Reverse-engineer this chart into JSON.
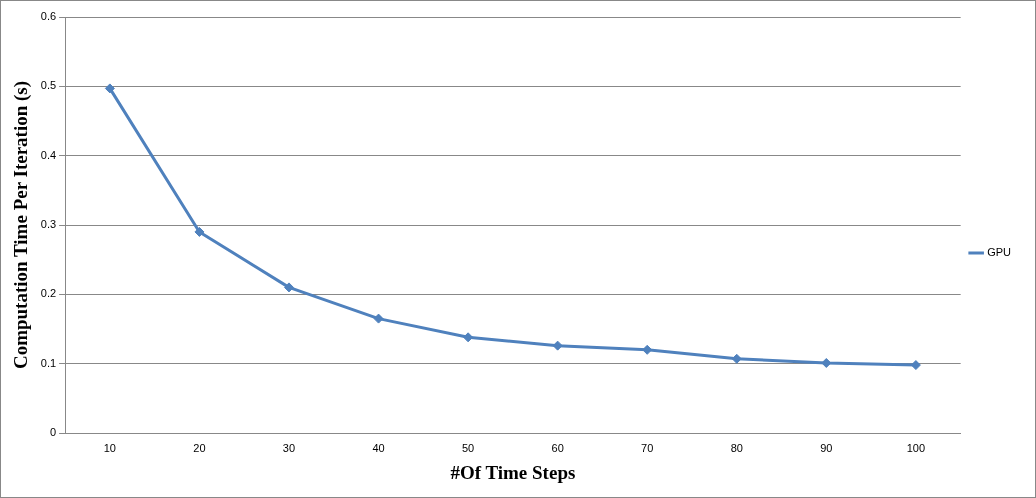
{
  "chart_data": {
    "type": "line",
    "xlabel": "#Of Time Steps",
    "ylabel": "Computation Time Per Iteration (s)",
    "categories": [
      "10",
      "20",
      "30",
      "40",
      "50",
      "60",
      "70",
      "80",
      "90",
      "100"
    ],
    "series": [
      {
        "name": "GPU",
        "color": "#4f81bd",
        "values": [
          0.497,
          0.29,
          0.21,
          0.165,
          0.138,
          0.126,
          0.12,
          0.107,
          0.101,
          0.098
        ]
      }
    ],
    "ylim": [
      0,
      0.6
    ],
    "yticks": [
      0,
      0.1,
      0.2,
      0.3,
      0.4,
      0.5,
      0.6
    ],
    "grid": "y",
    "legend": "right",
    "marker": "diamond",
    "line_style": "solid"
  }
}
